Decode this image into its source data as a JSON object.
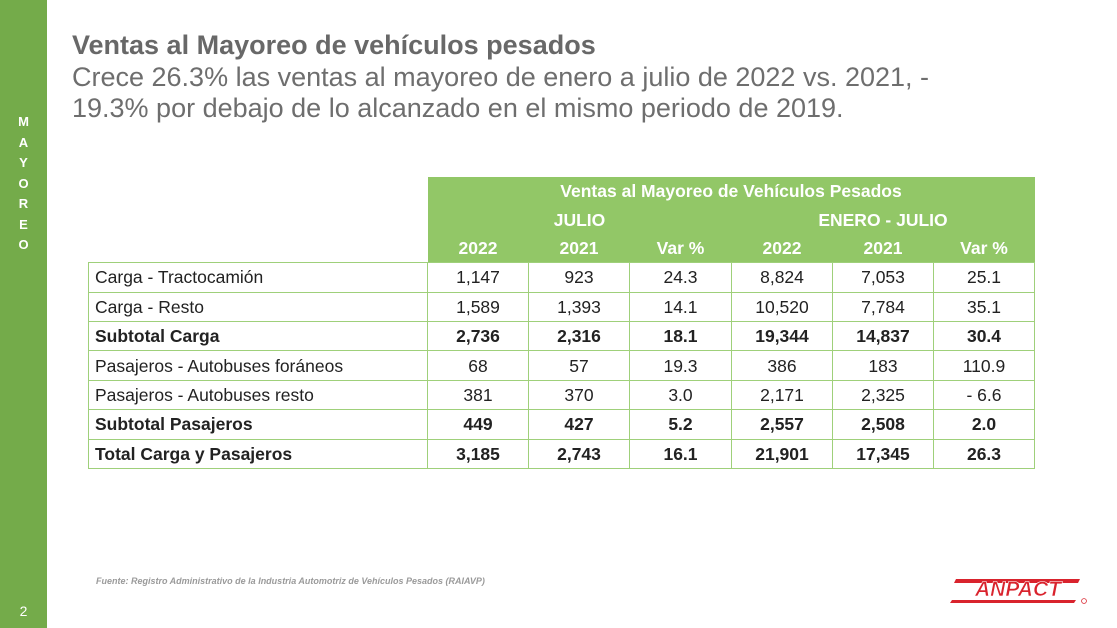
{
  "sidebar": {
    "letters": [
      "M",
      "A",
      "Y",
      "O",
      "R",
      "E",
      "O"
    ],
    "page_number": "2"
  },
  "header": {
    "title": "Ventas al Mayoreo de vehículos pesados",
    "subtitle_line1": "Crece 26.3% las ventas al mayoreo de enero a julio de 2022 vs. 2021, -",
    "subtitle_line2": "19.3% por debajo de lo alcanzado en el mismo periodo de 2019."
  },
  "table": {
    "title": "Ventas al Mayoreo de Vehículos Pesados",
    "group_julio": "JULIO",
    "group_enero_julio": "ENERO - JULIO",
    "col_headers": [
      "2022",
      "2021",
      "Var %",
      "2022",
      "2021",
      "Var %"
    ],
    "rows": [
      {
        "label": "Carga - Tractocamión",
        "values": [
          "1,147",
          "923",
          "24.3",
          "8,824",
          "7,053",
          "25.1"
        ]
      },
      {
        "label": "Carga - Resto",
        "values": [
          "1,589",
          "1,393",
          "14.1",
          "10,520",
          "7,784",
          "35.1"
        ]
      },
      {
        "label": "Subtotal Carga",
        "values": [
          "2,736",
          "2,316",
          "18.1",
          "19,344",
          "14,837",
          "30.4"
        ]
      },
      {
        "label": "Pasajeros - Autobuses foráneos",
        "values": [
          "68",
          "57",
          "19.3",
          "386",
          "183",
          "110.9"
        ]
      },
      {
        "label": "Pasajeros - Autobuses resto",
        "values": [
          "381",
          "370",
          "3.0",
          "2,171",
          "2,325",
          "- 6.6"
        ]
      },
      {
        "label": "Subtotal Pasajeros",
        "values": [
          "449",
          "427",
          "5.2",
          "2,557",
          "2,508",
          "2.0"
        ]
      },
      {
        "label": "Total Carga y Pasajeros",
        "values": [
          "3,185",
          "2,743",
          "16.1",
          "21,901",
          "17,345",
          "26.3"
        ]
      }
    ]
  },
  "footer": {
    "source": "Fuente: Registro Administrativo de la Industria Automotriz de Vehículos Pesados (RAIAVP)",
    "logo_text": "ANPACT"
  },
  "colors": {
    "sidebar_green": "#74ab4a",
    "header_green": "#92c767",
    "border_green": "#9fd07a",
    "logo_red": "#d9232d"
  }
}
